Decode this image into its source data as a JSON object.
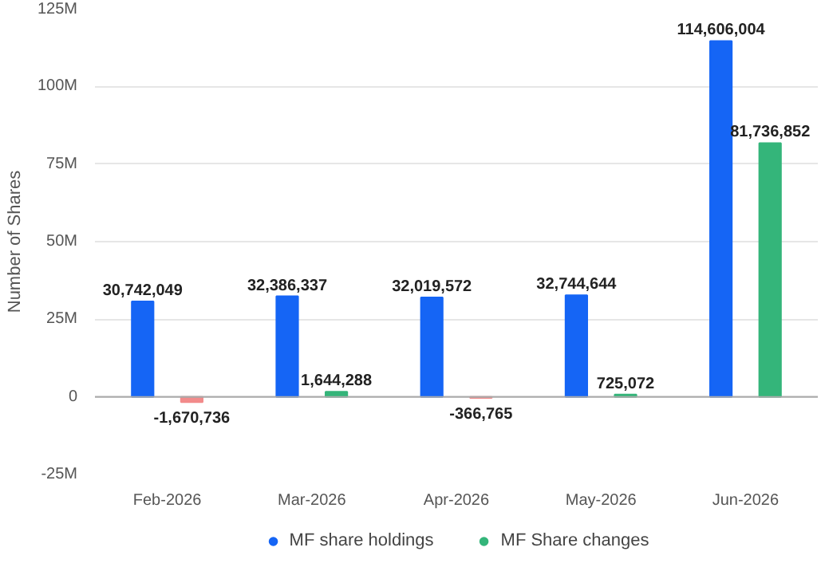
{
  "chart_data": {
    "type": "bar",
    "categories": [
      "Feb-2026",
      "Mar-2026",
      "Apr-2026",
      "May-2026",
      "Jun-2026"
    ],
    "ylabel": "Number of Shares",
    "series": [
      {
        "name": "MF share holdings",
        "color": "#1565f5",
        "values": [
          30742049,
          32386337,
          32019572,
          32744644,
          114606004
        ],
        "value_labels": [
          "30,742,049",
          "32,386,337",
          "32,019,572",
          "32,744,644",
          "114,606,004"
        ]
      },
      {
        "name": "MF Share changes",
        "color": "#34b57a",
        "colors": [
          "#f28b8b",
          "#34b57a",
          "#f28b8b",
          "#34b57a",
          "#34b57a"
        ],
        "values": [
          -1670736,
          1644288,
          -366765,
          725072,
          81736852
        ],
        "value_labels": [
          "-1,670,736",
          "1,644,288",
          "-366,765",
          "725,072",
          "81,736,852"
        ]
      }
    ],
    "ylim": [
      -25000000,
      125000000
    ],
    "yticks": [
      {
        "value": -25000000,
        "label": "-25M"
      },
      {
        "value": 0,
        "label": "0"
      },
      {
        "value": 25000000,
        "label": "25M"
      },
      {
        "value": 50000000,
        "label": "50M"
      },
      {
        "value": 75000000,
        "label": "75M"
      },
      {
        "value": 100000000,
        "label": "100M"
      },
      {
        "value": 125000000,
        "label": "125M"
      }
    ],
    "grid": "y",
    "legend": "bottom"
  }
}
